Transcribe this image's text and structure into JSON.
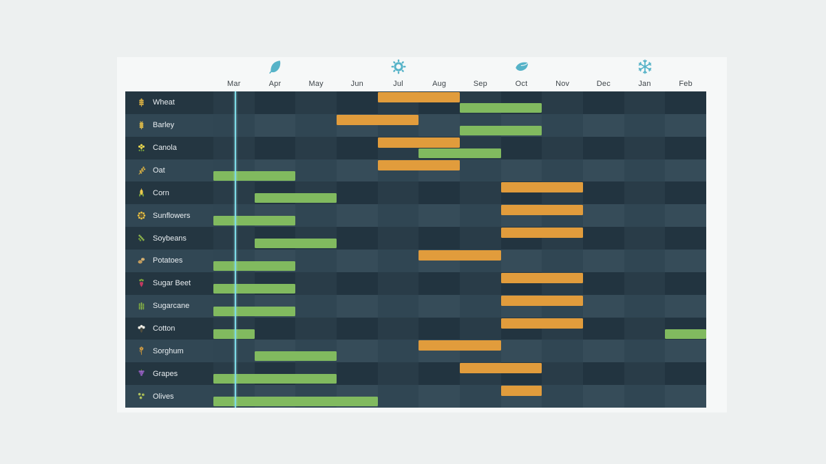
{
  "colors": {
    "page_bg": "#edf0f0",
    "card_bg": "#f6f8f8",
    "month_label": "#3d4449",
    "season_icon": "#56b3c8",
    "plant_bar": "#81ba5f",
    "harvest_bar": "#e19c3c",
    "today_line": "#7cdbe6",
    "row_even_cell_light": "#293c48",
    "row_even_cell_dark": "#223440",
    "row_odd_cell_light": "#364c59",
    "row_odd_cell_dark": "#304653",
    "row_even_label_bg": "#243641",
    "row_odd_label_bg": "#314754"
  },
  "chart_data": {
    "type": "gantt",
    "x_unit": "month",
    "months": [
      "Mar",
      "Apr",
      "May",
      "Jun",
      "Jul",
      "Aug",
      "Sep",
      "Oct",
      "Nov",
      "Dec",
      "Jan",
      "Feb"
    ],
    "seasons": [
      {
        "name": "spring",
        "icon": "spring-leaf-icon",
        "month": "Apr"
      },
      {
        "name": "summer",
        "icon": "summer-sun-icon",
        "month": "Jul"
      },
      {
        "name": "autumn",
        "icon": "autumn-leaf-icon",
        "month": "Oct"
      },
      {
        "name": "winter",
        "icon": "winter-snowflake-icon",
        "month": "Jan"
      }
    ],
    "today_marker": {
      "month": "Mar",
      "fraction": 0.53
    },
    "series_meaning": {
      "plant": "green bars (bottom half of row)",
      "harvest": "orange bars (top half of row)"
    },
    "crops": [
      {
        "name": "Wheat",
        "icon": "wheat-icon",
        "plant": [
          [
            "Sep",
            2
          ]
        ],
        "harvest": [
          [
            "Jul",
            2
          ]
        ]
      },
      {
        "name": "Barley",
        "icon": "barley-icon",
        "plant": [
          [
            "Sep",
            2
          ]
        ],
        "harvest": [
          [
            "Jun",
            2
          ]
        ]
      },
      {
        "name": "Canola",
        "icon": "canola-icon",
        "plant": [
          [
            "Aug",
            2
          ]
        ],
        "harvest": [
          [
            "Jul",
            2
          ]
        ]
      },
      {
        "name": "Oat",
        "icon": "oat-icon",
        "plant": [
          [
            "Mar",
            2
          ]
        ],
        "harvest": [
          [
            "Jul",
            2
          ]
        ]
      },
      {
        "name": "Corn",
        "icon": "corn-icon",
        "plant": [
          [
            "Apr",
            2
          ]
        ],
        "harvest": [
          [
            "Oct",
            2
          ]
        ]
      },
      {
        "name": "Sunflowers",
        "icon": "sunflower-icon",
        "plant": [
          [
            "Mar",
            2
          ]
        ],
        "harvest": [
          [
            "Oct",
            2
          ]
        ]
      },
      {
        "name": "Soybeans",
        "icon": "soybeans-icon",
        "plant": [
          [
            "Apr",
            2
          ]
        ],
        "harvest": [
          [
            "Oct",
            2
          ]
        ]
      },
      {
        "name": "Potatoes",
        "icon": "potatoes-icon",
        "plant": [
          [
            "Mar",
            2
          ]
        ],
        "harvest": [
          [
            "Aug",
            2
          ]
        ]
      },
      {
        "name": "Sugar Beet",
        "icon": "sugar-beet-icon",
        "plant": [
          [
            "Mar",
            2
          ]
        ],
        "harvest": [
          [
            "Oct",
            2
          ]
        ]
      },
      {
        "name": "Sugarcane",
        "icon": "sugarcane-icon",
        "plant": [
          [
            "Mar",
            2
          ]
        ],
        "harvest": [
          [
            "Oct",
            2
          ]
        ]
      },
      {
        "name": "Cotton",
        "icon": "cotton-icon",
        "plant": [
          [
            "Mar",
            1
          ],
          [
            "Feb",
            1
          ]
        ],
        "harvest": [
          [
            "Oct",
            2
          ]
        ]
      },
      {
        "name": "Sorghum",
        "icon": "sorghum-icon",
        "plant": [
          [
            "Apr",
            2
          ]
        ],
        "harvest": [
          [
            "Aug",
            2
          ]
        ]
      },
      {
        "name": "Grapes",
        "icon": "grapes-icon",
        "plant": [
          [
            "Mar",
            3
          ]
        ],
        "harvest": [
          [
            "Sep",
            2
          ]
        ]
      },
      {
        "name": "Olives",
        "icon": "olives-icon",
        "plant": [
          [
            "Mar",
            4
          ]
        ],
        "harvest": [
          [
            "Oct",
            1
          ]
        ]
      }
    ]
  }
}
